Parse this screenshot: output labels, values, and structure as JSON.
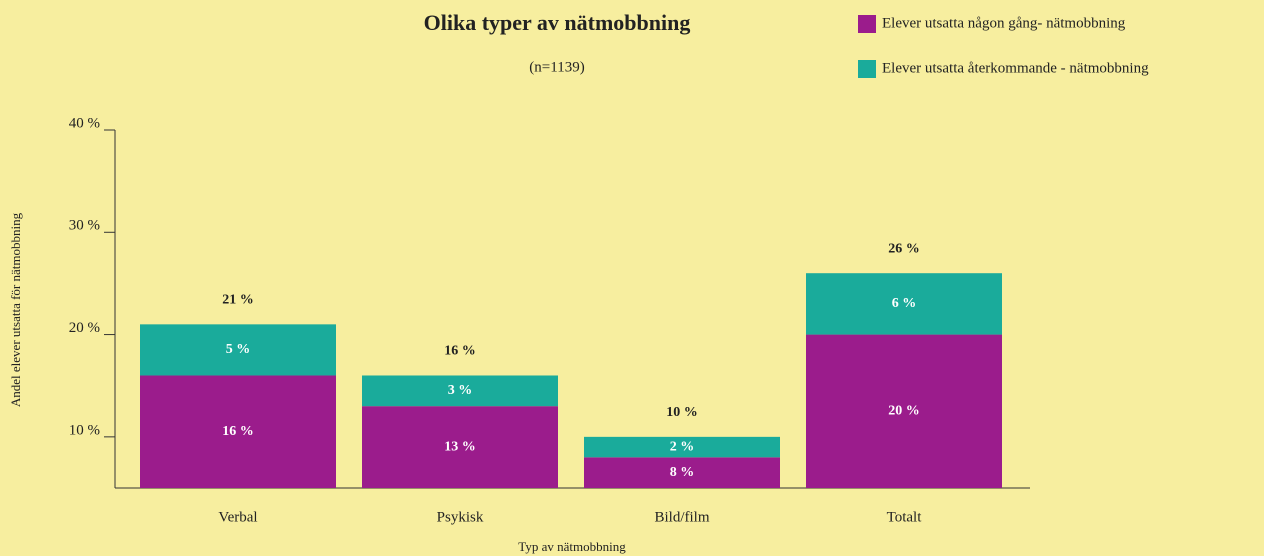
{
  "chart_data": {
    "type": "stacked_bar",
    "title": "Olika typer av nätmobbning",
    "subtitle": "(n=1139)",
    "y_label": "Andel elever utsatta för nätmobbning",
    "x_label": "Typ av nätmobbning",
    "categories": [
      "Verbal",
      "Psykisk",
      "Bild/film",
      "Totalt"
    ],
    "series": [
      {
        "name": "Elever utsatta någon gång- nätmobbning",
        "color": "#9b1c8c",
        "values": [
          16,
          13,
          8,
          20
        ],
        "value_labels": [
          "16 %",
          "13 %",
          "8 %",
          "20 %"
        ]
      },
      {
        "name": "Elever utsatta återkommande - nätmobbning",
        "color": "#1aab9b",
        "values": [
          5,
          3,
          2,
          6
        ],
        "value_labels": [
          "5 %",
          "3 %",
          "2 %",
          "6 %"
        ]
      }
    ],
    "total_labels": [
      "21 %",
      "16 %",
      "10 %",
      "26 %"
    ],
    "ylim": [
      5,
      40
    ],
    "yticks": [
      {
        "value": 10,
        "label": "10 %"
      },
      {
        "value": 20,
        "label": "20 %"
      },
      {
        "value": 30,
        "label": "30 %"
      },
      {
        "value": 40,
        "label": "40 %"
      }
    ]
  }
}
